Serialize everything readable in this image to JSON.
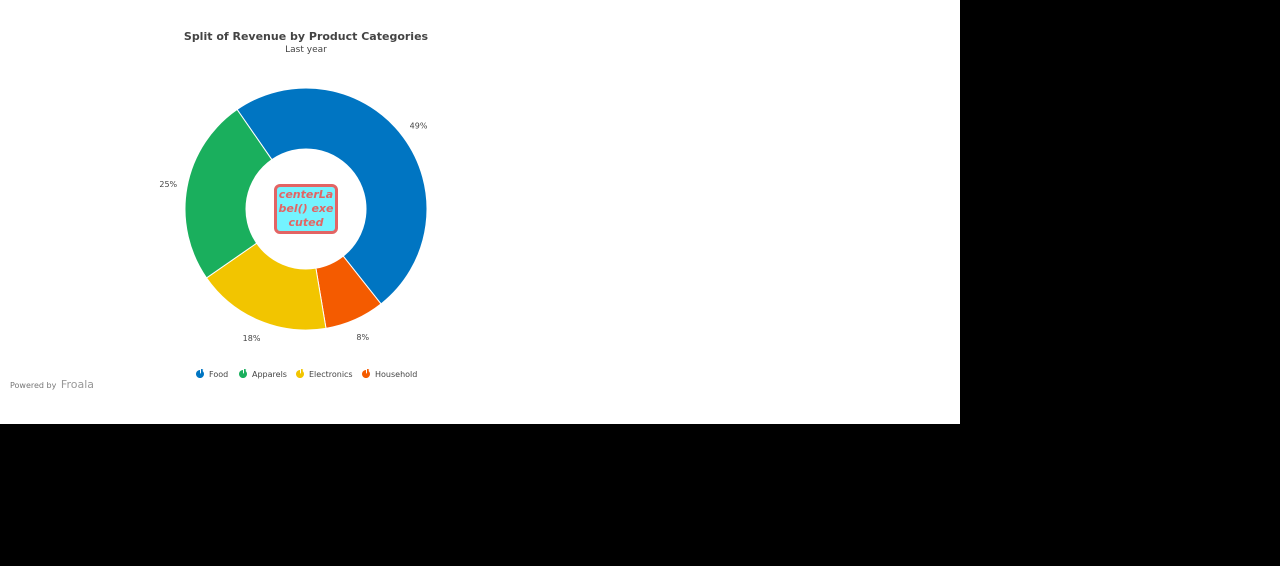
{
  "chart_data": {
    "type": "pie",
    "title": "Split of Revenue by Product Categories",
    "subtitle": "Last year",
    "center_label": "centerLabel() executed",
    "series": [
      {
        "name": "Food",
        "value": 49,
        "label": "49%",
        "color": "#0075c2"
      },
      {
        "name": "Household",
        "value": 8,
        "label": "8%",
        "color": "#f45b00"
      },
      {
        "name": "Electronics",
        "value": 18,
        "label": "18%",
        "color": "#f2c500"
      },
      {
        "name": "Apparels",
        "value": 25,
        "label": "25%",
        "color": "#1aaf5d"
      }
    ],
    "legend": [
      "Food",
      "Apparels",
      "Electronics",
      "Household"
    ],
    "legend_position": "bottom"
  },
  "credit": {
    "prefix": "Powered by",
    "brand": "Froala"
  }
}
